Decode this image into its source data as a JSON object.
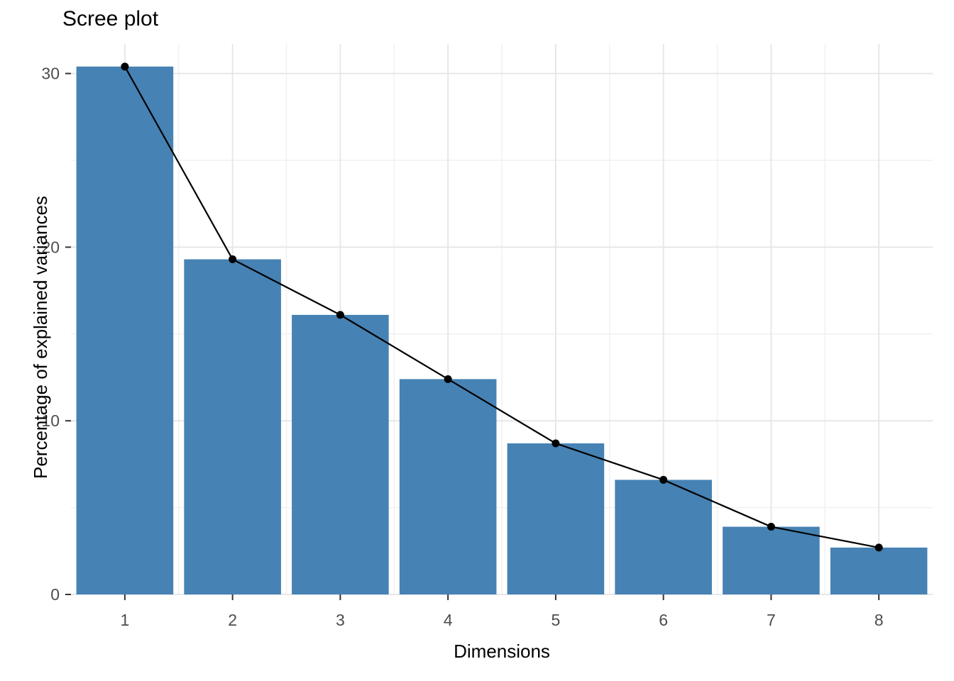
{
  "chart_data": {
    "type": "bar",
    "overlay": "line-with-points",
    "title": "Scree plot",
    "xlabel": "Dimensions",
    "ylabel": "Percentage of explained variances",
    "categories": [
      "1",
      "2",
      "3",
      "4",
      "5",
      "6",
      "7",
      "8"
    ],
    "values": [
      30.4,
      19.3,
      16.1,
      12.4,
      8.7,
      6.6,
      3.9,
      2.7
    ],
    "yticks": [
      0,
      10,
      20,
      30
    ],
    "ylim": [
      0,
      31.7
    ],
    "grid": true,
    "legend": "none",
    "colors": {
      "bar": "#4682b4",
      "line": "#000000",
      "point": "#000000",
      "grid_major": "#e5e5e5",
      "grid_minor": "#f2f2f2",
      "tick_mark": "#333333",
      "tick_text": "#4d4d4d",
      "background": "#ffffff"
    }
  }
}
